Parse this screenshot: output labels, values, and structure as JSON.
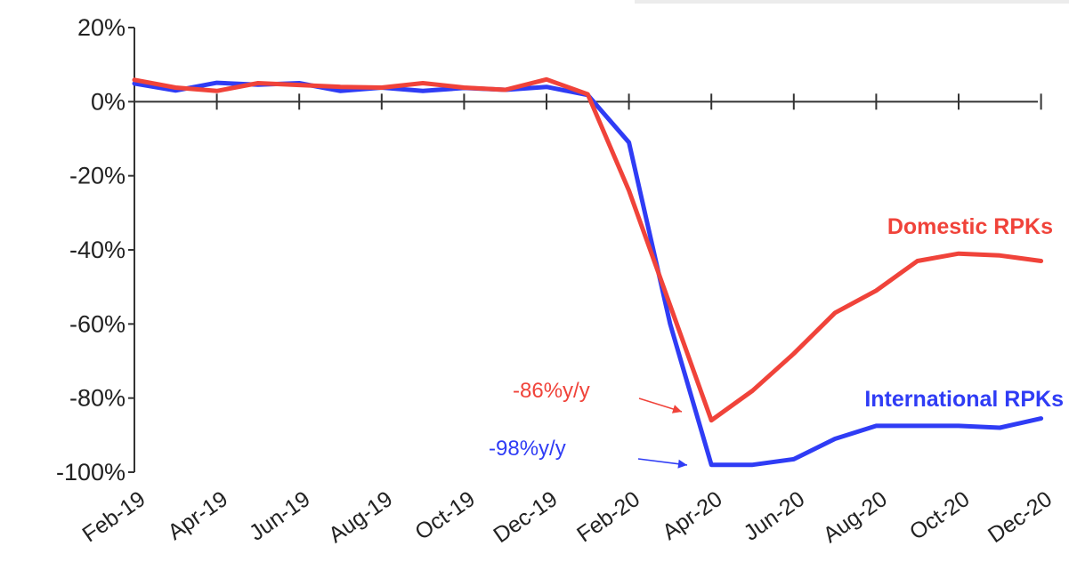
{
  "chart_data": {
    "type": "line",
    "title": "",
    "xlabel": "",
    "ylabel": "",
    "ylim": [
      -100,
      20
    ],
    "y_ticks": [
      20,
      0,
      -20,
      -40,
      -60,
      -80,
      -100
    ],
    "y_tick_labels": [
      "20%",
      "0%",
      "-20%",
      "-40%",
      "-60%",
      "-80%",
      "-100%"
    ],
    "x": [
      "Feb-19",
      "Mar-19",
      "Apr-19",
      "May-19",
      "Jun-19",
      "Jul-19",
      "Aug-19",
      "Sep-19",
      "Oct-19",
      "Nov-19",
      "Dec-19",
      "Jan-20",
      "Feb-20",
      "Mar-20",
      "Apr-20",
      "May-20",
      "Jun-20",
      "Jul-20",
      "Aug-20",
      "Sep-20",
      "Oct-20",
      "Nov-20",
      "Dec-20"
    ],
    "x_tick_labels": [
      "Feb-19",
      "Apr-19",
      "Jun-19",
      "Aug-19",
      "Oct-19",
      "Dec-19",
      "Feb-20",
      "Apr-20",
      "Jun-20",
      "Aug-20",
      "Oct-20",
      "Dec-20"
    ],
    "grid": false,
    "series": [
      {
        "name": "Domestic RPKs",
        "color": "#f0433a",
        "values": [
          5.9,
          3.8,
          2.9,
          5.0,
          4.5,
          4.0,
          3.8,
          5.0,
          3.8,
          3.2,
          6.0,
          2.0,
          -24,
          -55,
          -86,
          -78,
          -68,
          -57,
          -51,
          -43,
          -41,
          -41.5,
          -43
        ]
      },
      {
        "name": "International RPKs",
        "color": "#2f3cf5",
        "values": [
          4.9,
          3.0,
          5.1,
          4.6,
          5.0,
          2.9,
          3.8,
          2.9,
          3.7,
          3.2,
          4.0,
          1.8,
          -11,
          -60,
          -98,
          -98,
          -96.5,
          -91,
          -87.5,
          -87.5,
          -87.5,
          -88,
          -85.5
        ]
      }
    ],
    "annotations": [
      {
        "text": "-86%y/y",
        "color": "#f0433a"
      },
      {
        "text": "-98%y/y",
        "color": "#2f3cf5"
      }
    ]
  }
}
